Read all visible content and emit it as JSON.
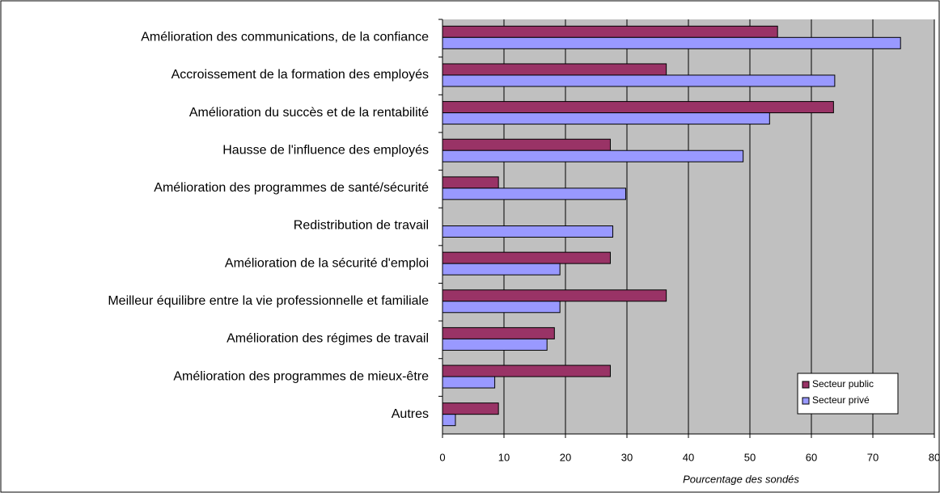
{
  "chart_data": {
    "type": "barh",
    "xlabel": "Pourcentage des sondés",
    "categories": [
      "Amélioration des communications, de la confiance",
      "Accroissement de la formation des employés",
      "Amélioration du succès et de la rentabilité",
      "Hausse de l'influence des employés",
      "Amélioration des programmes de santé/sécurité",
      "Redistribution de travail",
      "Amélioration de la sécurité d'emploi",
      "Meilleur équilibre entre la vie professionnelle et familiale",
      "Amélioration des régimes de travail",
      "Amélioration des programmes de mieux-être",
      "Autres"
    ],
    "series": [
      {
        "name": "Secteur public",
        "color": "#993366",
        "values": [
          54.5,
          36.4,
          63.6,
          27.3,
          9.1,
          0,
          27.3,
          36.4,
          18.2,
          27.3,
          9.1
        ]
      },
      {
        "name": "Secteur privé",
        "color": "#9999ff",
        "values": [
          74.5,
          63.8,
          53.2,
          48.9,
          29.8,
          27.7,
          19.1,
          19.1,
          17.0,
          8.5,
          2.1
        ]
      }
    ],
    "xlim": [
      0,
      80
    ],
    "xticks": [
      0,
      10,
      20,
      30,
      40,
      50,
      60,
      70,
      80
    ],
    "grid": true,
    "legend": "lower right"
  }
}
